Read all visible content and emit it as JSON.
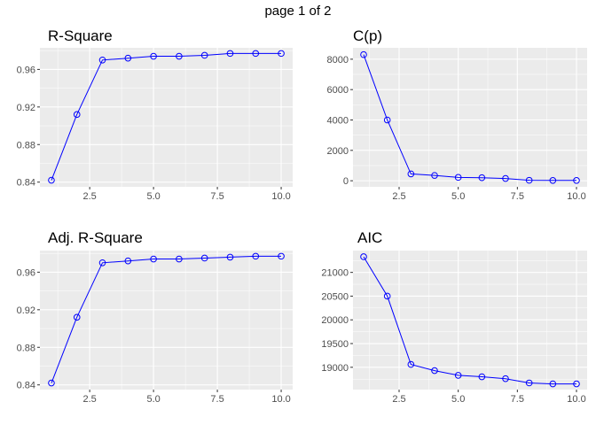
{
  "page_label": "page 1 of 2",
  "colors": {
    "panel_bg": "#ebebeb",
    "grid": "#ffffff",
    "series": "#0000ff",
    "tick_text": "#4d4d4d"
  },
  "chart_data": [
    {
      "type": "line",
      "title": "R-Square",
      "x": [
        1,
        2,
        3,
        4,
        5,
        6,
        7,
        8,
        9,
        10
      ],
      "y": [
        0.842,
        0.912,
        0.97,
        0.972,
        0.974,
        0.974,
        0.975,
        0.977,
        0.977,
        0.977
      ],
      "xlim": [
        0.55,
        10.45
      ],
      "ylim": [
        0.835,
        0.983
      ],
      "xticks": [
        2.5,
        5.0,
        7.5,
        10.0
      ],
      "xtick_labels": [
        "2.5",
        "5.0",
        "7.5",
        "10.0"
      ],
      "yticks": [
        0.84,
        0.88,
        0.92,
        0.96
      ],
      "ytick_labels": [
        "0.84",
        "0.88",
        "0.92",
        "0.96"
      ],
      "marker": "open-circle",
      "grid": true
    },
    {
      "type": "line",
      "title": "C(p)",
      "x": [
        1,
        2,
        3,
        4,
        5,
        6,
        7,
        8,
        9,
        10
      ],
      "y": [
        8300,
        4000,
        450,
        350,
        220,
        200,
        150,
        30,
        20,
        20
      ],
      "xlim": [
        0.55,
        10.45
      ],
      "ylim": [
        -400,
        8750
      ],
      "xticks": [
        2.5,
        5.0,
        7.5,
        10.0
      ],
      "xtick_labels": [
        "2.5",
        "5.0",
        "7.5",
        "10.0"
      ],
      "yticks": [
        0,
        2000,
        4000,
        6000,
        8000
      ],
      "ytick_labels": [
        "0",
        "2000",
        "4000",
        "6000",
        "8000"
      ],
      "marker": "open-circle",
      "grid": true
    },
    {
      "type": "line",
      "title": "Adj. R-Square",
      "x": [
        1,
        2,
        3,
        4,
        5,
        6,
        7,
        8,
        9,
        10
      ],
      "y": [
        0.842,
        0.912,
        0.97,
        0.972,
        0.974,
        0.974,
        0.975,
        0.976,
        0.977,
        0.977
      ],
      "xlim": [
        0.55,
        10.45
      ],
      "ylim": [
        0.835,
        0.983
      ],
      "xticks": [
        2.5,
        5.0,
        7.5,
        10.0
      ],
      "xtick_labels": [
        "2.5",
        "5.0",
        "7.5",
        "10.0"
      ],
      "yticks": [
        0.84,
        0.88,
        0.92,
        0.96
      ],
      "ytick_labels": [
        "0.84",
        "0.88",
        "0.92",
        "0.96"
      ],
      "marker": "open-circle",
      "grid": true
    },
    {
      "type": "line",
      "title": "AIC",
      "x": [
        1,
        2,
        3,
        4,
        5,
        6,
        7,
        8,
        9,
        10
      ],
      "y": [
        21330,
        20500,
        19060,
        18930,
        18830,
        18800,
        18760,
        18670,
        18650,
        18650
      ],
      "xlim": [
        0.55,
        10.45
      ],
      "ylim": [
        18530,
        21460
      ],
      "xticks": [
        2.5,
        5.0,
        7.5,
        10.0
      ],
      "xtick_labels": [
        "2.5",
        "5.0",
        "7.5",
        "10.0"
      ],
      "yticks": [
        19000,
        19500,
        20000,
        20500,
        21000
      ],
      "ytick_labels": [
        "19000",
        "19500",
        "20000",
        "20500",
        "21000"
      ],
      "marker": "open-circle",
      "grid": true
    }
  ]
}
